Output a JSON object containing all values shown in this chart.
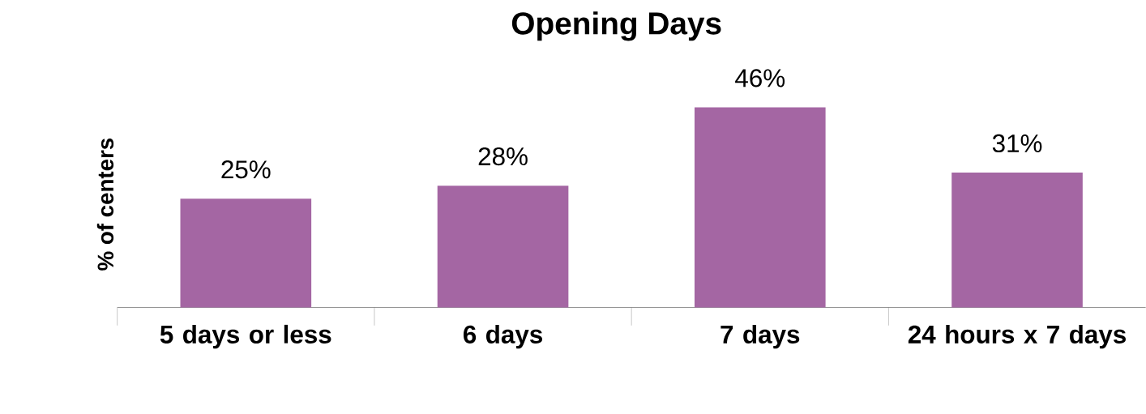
{
  "chart_data": {
    "type": "bar",
    "title": "Opening Days",
    "ylabel": "% of centers",
    "categories": [
      "5 days or less",
      "6 days",
      "7 days",
      "24 hours x 7 days"
    ],
    "values": [
      25,
      28,
      46,
      31
    ],
    "value_labels": [
      "25%",
      "28%",
      "46%",
      "31%"
    ],
    "color": "#a466a3"
  }
}
